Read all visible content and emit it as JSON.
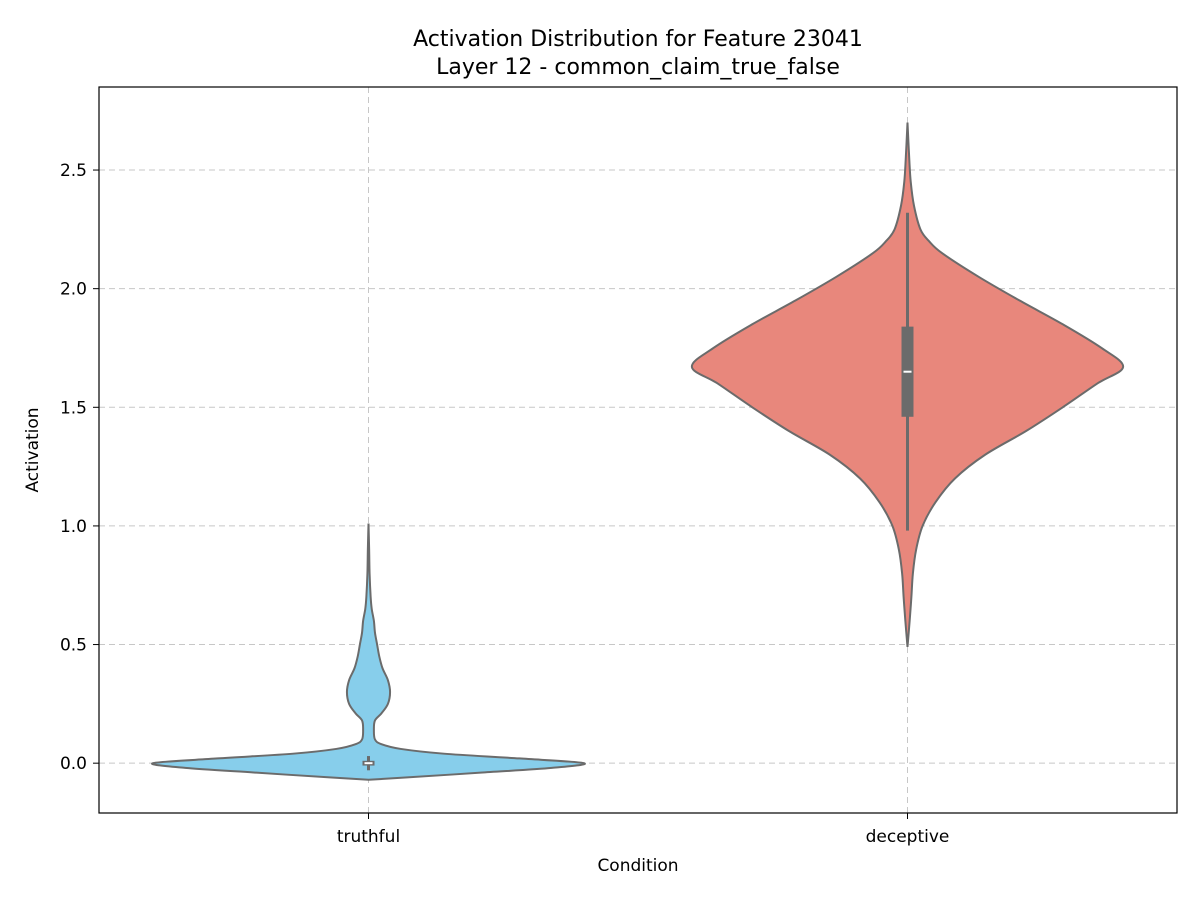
{
  "chart_data": {
    "type": "violin",
    "title": "Activation Distribution for Feature 23041",
    "subtitle": "Layer 12 - common_claim_true_false",
    "xlabel": "Condition",
    "ylabel": "Activation",
    "ylim": [
      -0.21,
      2.85
    ],
    "yticks": [
      0.0,
      0.5,
      1.0,
      1.5,
      2.0,
      2.5
    ],
    "ytick_labels": [
      "0.0",
      "0.5",
      "1.0",
      "1.5",
      "2.0",
      "2.5"
    ],
    "categories": [
      "truthful",
      "deceptive"
    ],
    "grid": true,
    "series": [
      {
        "category": "truthful",
        "color": "#87ceeb",
        "density": [
          [
            -0.07,
            0.0
          ],
          [
            -0.06,
            0.18
          ],
          [
            -0.04,
            0.52
          ],
          [
            -0.02,
            0.85
          ],
          [
            0.0,
            1.0
          ],
          [
            0.02,
            0.7
          ],
          [
            0.04,
            0.35
          ],
          [
            0.06,
            0.15
          ],
          [
            0.08,
            0.06
          ],
          [
            0.1,
            0.03
          ],
          [
            0.14,
            0.025
          ],
          [
            0.18,
            0.03
          ],
          [
            0.21,
            0.06
          ],
          [
            0.25,
            0.09
          ],
          [
            0.3,
            0.1
          ],
          [
            0.35,
            0.09
          ],
          [
            0.4,
            0.065
          ],
          [
            0.45,
            0.05
          ],
          [
            0.5,
            0.04
          ],
          [
            0.55,
            0.03
          ],
          [
            0.6,
            0.025
          ],
          [
            0.65,
            0.015
          ],
          [
            0.7,
            0.01
          ],
          [
            0.8,
            0.005
          ],
          [
            0.9,
            0.003
          ],
          [
            1.01,
            0.0
          ]
        ],
        "quartiles": [
          -0.01,
          0.0,
          0.01
        ],
        "whiskers": [
          -0.03,
          0.03
        ],
        "median": 0.0
      },
      {
        "category": "deceptive",
        "color": "#e8877c",
        "density": [
          [
            0.49,
            0.0
          ],
          [
            0.6,
            0.01
          ],
          [
            0.7,
            0.018
          ],
          [
            0.8,
            0.025
          ],
          [
            0.9,
            0.04
          ],
          [
            1.0,
            0.07
          ],
          [
            1.1,
            0.13
          ],
          [
            1.2,
            0.22
          ],
          [
            1.3,
            0.36
          ],
          [
            1.4,
            0.55
          ],
          [
            1.5,
            0.72
          ],
          [
            1.6,
            0.88
          ],
          [
            1.67,
            1.0
          ],
          [
            1.75,
            0.9
          ],
          [
            1.85,
            0.72
          ],
          [
            1.95,
            0.52
          ],
          [
            2.05,
            0.33
          ],
          [
            2.15,
            0.16
          ],
          [
            2.2,
            0.1
          ],
          [
            2.25,
            0.06
          ],
          [
            2.35,
            0.03
          ],
          [
            2.45,
            0.015
          ],
          [
            2.55,
            0.008
          ],
          [
            2.7,
            0.0
          ]
        ],
        "quartiles": [
          1.46,
          1.65,
          1.84
        ],
        "whiskers": [
          0.98,
          2.32
        ],
        "median": 1.65
      }
    ]
  }
}
